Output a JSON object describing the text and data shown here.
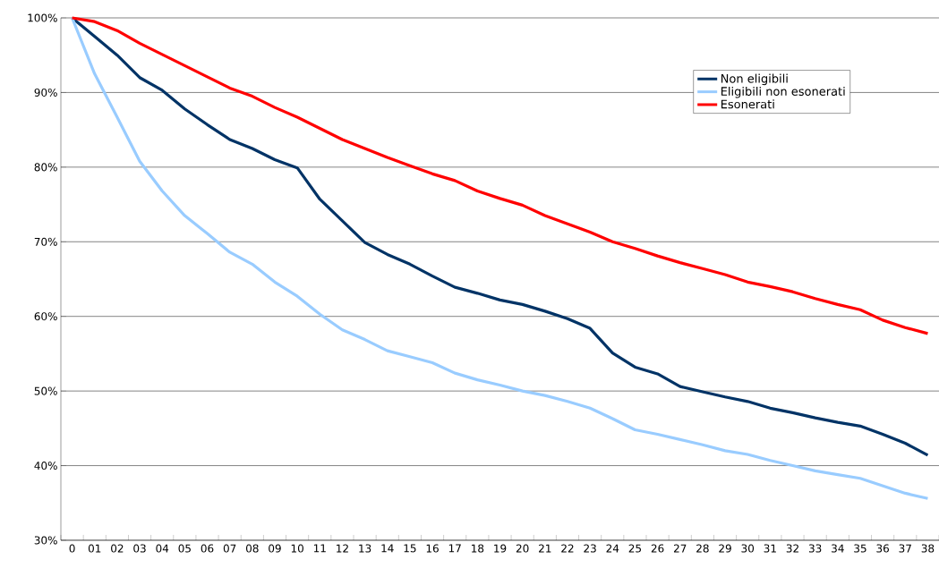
{
  "chart_data": {
    "type": "line",
    "categories": [
      "0",
      "01",
      "02",
      "03",
      "04",
      "05",
      "06",
      "07",
      "08",
      "09",
      "10",
      "11",
      "12",
      "13",
      "14",
      "15",
      "16",
      "17",
      "18",
      "19",
      "20",
      "21",
      "22",
      "23",
      "24",
      "25",
      "26",
      "27",
      "28",
      "29",
      "30",
      "31",
      "32",
      "33",
      "34",
      "35",
      "36",
      "37",
      "38"
    ],
    "series": [
      {
        "name": "Non eligibili",
        "color": "#003366",
        "values": [
          100,
          97.5,
          95,
          92,
          90.3,
          87.8,
          85.7,
          83.7,
          82.5,
          81,
          79.9,
          75.7,
          72.8,
          69.9,
          68.3,
          67,
          65.4,
          63.9,
          63.1,
          62.2,
          61.6,
          60.7,
          59.7,
          58.4,
          55.1,
          53.2,
          52.3,
          50.6,
          49.9,
          49.2,
          48.6,
          47.7,
          47.1,
          46.4,
          45.8,
          45.3,
          44.2,
          43,
          41.4
        ]
      },
      {
        "name": "Eligibili non esonerati",
        "color": "#99ccff",
        "values": [
          100,
          92.5,
          86.7,
          80.8,
          76.8,
          73.5,
          71.1,
          68.6,
          67,
          64.6,
          62.7,
          60.3,
          58.2,
          56.9,
          55.4,
          54.6,
          53.8,
          52.4,
          51.5,
          50.8,
          50,
          49.4,
          48.6,
          47.7,
          46.3,
          44.8,
          44.2,
          43.5,
          42.8,
          42,
          41.5,
          40.7,
          40,
          39.3,
          38.8,
          38.3,
          37.3,
          36.3,
          35.6
        ]
      },
      {
        "name": "Esonerati",
        "color": "#ff0000",
        "values": [
          100,
          99.5,
          98.3,
          96.6,
          95.1,
          93.6,
          92.1,
          90.6,
          89.5,
          88,
          86.7,
          85.2,
          83.7,
          82.5,
          81.3,
          80.2,
          79.1,
          78.2,
          76.8,
          75.8,
          74.9,
          73.5,
          72.4,
          71.3,
          70,
          69.1,
          68.1,
          67.2,
          66.4,
          65.6,
          64.6,
          64,
          63.3,
          62.4,
          61.6,
          60.9,
          59.5,
          58.5,
          57.7
        ]
      }
    ],
    "ylim": [
      30,
      100
    ],
    "yticks": [
      {
        "value": 30,
        "label": "30%"
      },
      {
        "value": 40,
        "label": "40%"
      },
      {
        "value": 50,
        "label": "50%"
      },
      {
        "value": 60,
        "label": "60%"
      },
      {
        "value": 70,
        "label": "70%"
      },
      {
        "value": 80,
        "label": "80%"
      },
      {
        "value": 90,
        "label": "90%"
      },
      {
        "value": 100,
        "label": "100%"
      }
    ],
    "grid": "y",
    "legend": "top right",
    "marker": "none",
    "line_style": "solid"
  }
}
